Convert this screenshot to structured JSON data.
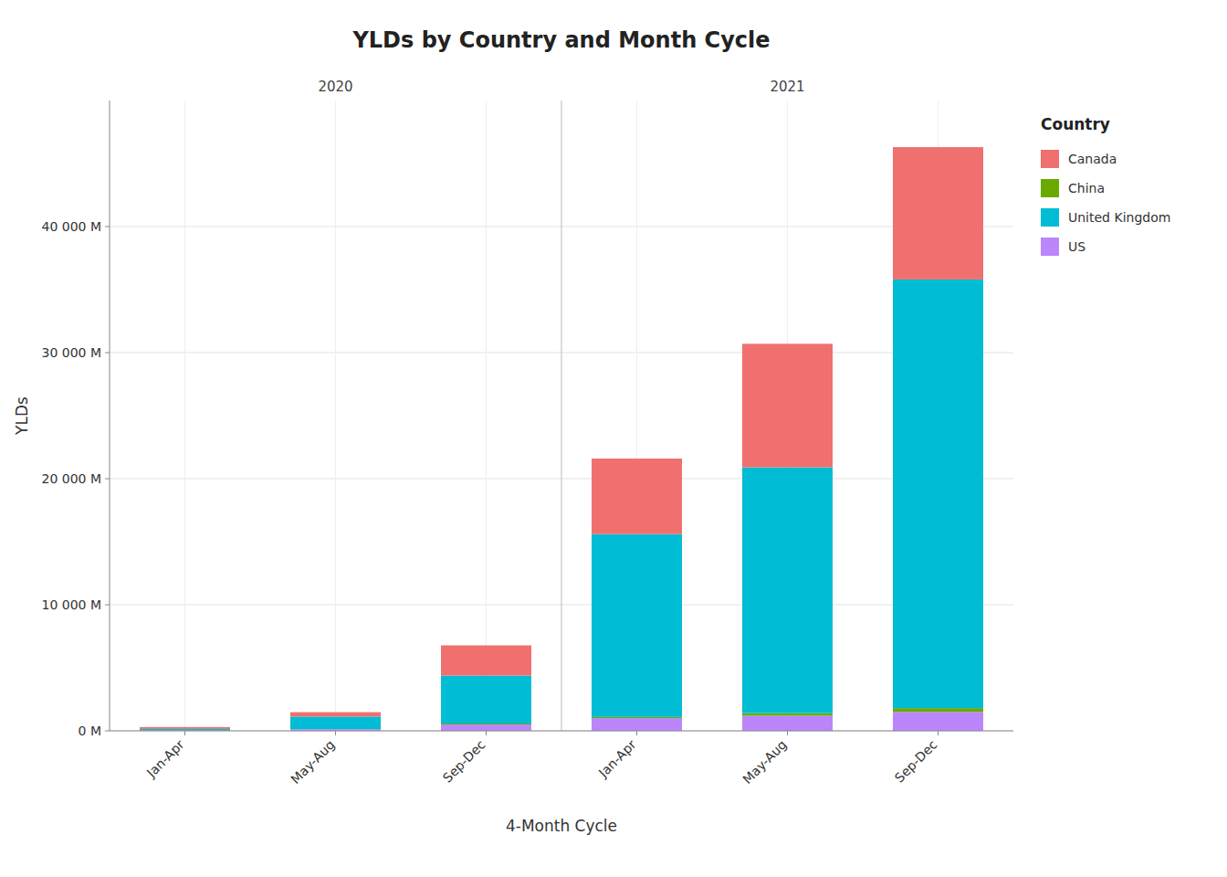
{
  "chart_data": {
    "type": "bar",
    "stacked": true,
    "title": "YLDs by Country and Month Cycle",
    "x_label": "4-Month Cycle",
    "y_label": "YLDs",
    "annotations": [
      "2020",
      "2021"
    ],
    "legend_title": "Country",
    "legend": "right",
    "grid": true,
    "categories": [
      "Jan-Apr",
      "May-Aug",
      "Sep-Dec",
      "Jan-Apr",
      "May-Aug",
      "Sep-Dec"
    ],
    "series": [
      {
        "name": "US",
        "color": "#BB86FC",
        "values": [
          30,
          130,
          500,
          1000,
          1200,
          1500
        ]
      },
      {
        "name": "China",
        "color": "#6aaa00",
        "values": [
          0,
          0,
          80,
          100,
          200,
          300
        ]
      },
      {
        "name": "United Kingdom",
        "color": "#00BCD4",
        "values": [
          120,
          1000,
          3800,
          14500,
          19500,
          34000
        ]
      },
      {
        "name": "Canada",
        "color": "#F07070",
        "values": [
          150,
          350,
          2400,
          6000,
          9800,
          10500
        ]
      }
    ],
    "ylim": [
      0,
      50000
    ],
    "yticks": [
      {
        "value": 0,
        "label": "0 M"
      },
      {
        "value": 10000,
        "label": "10 000 M"
      },
      {
        "value": 20000,
        "label": "20 000 M"
      },
      {
        "value": 30000,
        "label": "30 000 M"
      },
      {
        "value": 40000,
        "label": "40 000 M"
      }
    ]
  }
}
